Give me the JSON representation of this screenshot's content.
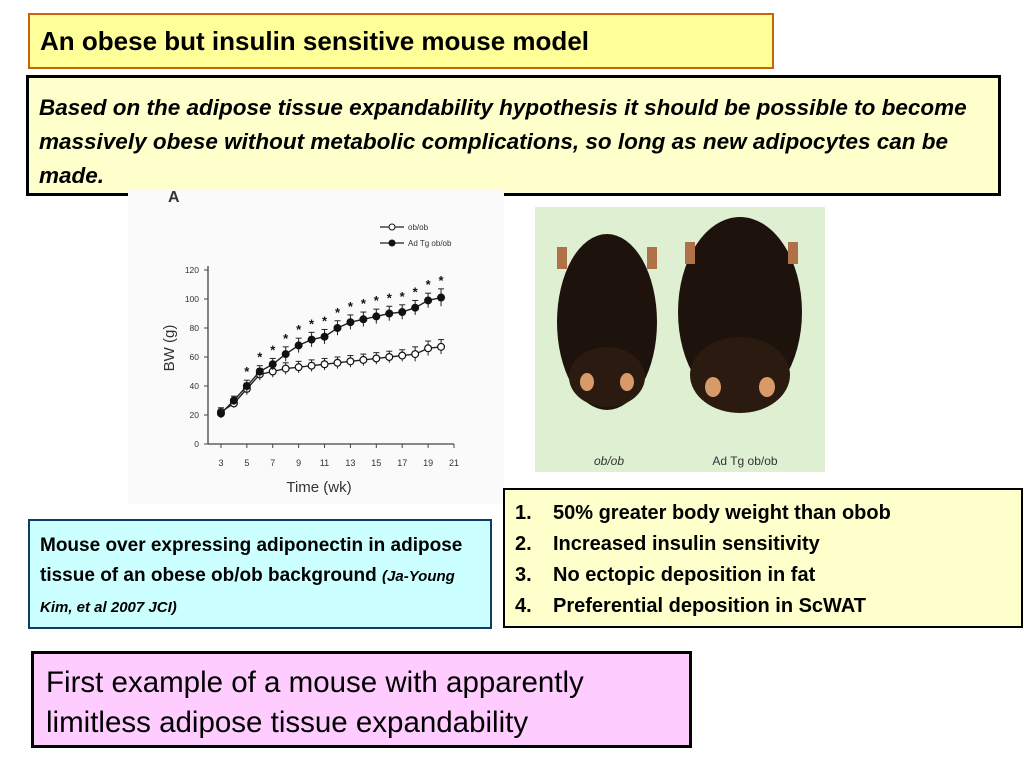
{
  "title": "An obese but insulin sensitive mouse model",
  "hypothesis": "Based on the adipose tissue expandability hypothesis it should be possible to become massively obese without metabolic complications, so long as new adipocytes can be made.",
  "chart_data": {
    "type": "line",
    "panel_letter": "A",
    "xlabel": "Time (wk)",
    "ylabel": "BW (g)",
    "xlim": [
      2,
      21
    ],
    "ylim": [
      0,
      120
    ],
    "x_ticks": [
      "3",
      "5",
      "7",
      "9",
      "11",
      "13",
      "15",
      "17",
      "19",
      "21"
    ],
    "y_ticks": [
      "0",
      "20",
      "40",
      "60",
      "80",
      "100",
      "120"
    ],
    "legend_position": "top-right",
    "grid": false,
    "x": [
      3,
      4,
      5,
      6,
      7,
      8,
      9,
      10,
      11,
      12,
      13,
      14,
      15,
      16,
      17,
      18,
      19,
      20
    ],
    "series": [
      {
        "name": "ob/ob",
        "marker": "open",
        "values": [
          22,
          28,
          38,
          48,
          50,
          52,
          53,
          54,
          55,
          56,
          57,
          58,
          59,
          60,
          61,
          62,
          66,
          67
        ],
        "errors": [
          3,
          3,
          4,
          4,
          4,
          4,
          4,
          4,
          4,
          4,
          4,
          4,
          4,
          4,
          4,
          5,
          5,
          5
        ]
      },
      {
        "name": "Ad Tg ob/ob",
        "marker": "filled",
        "values": [
          21,
          30,
          40,
          50,
          55,
          62,
          68,
          72,
          74,
          80,
          84,
          86,
          88,
          90,
          91,
          94,
          99,
          101
        ],
        "errors": [
          3,
          3,
          4,
          4,
          4,
          5,
          5,
          5,
          5,
          5,
          5,
          5,
          5,
          5,
          5,
          5,
          5,
          6
        ]
      }
    ],
    "significance_marker": "*",
    "significant_from_x": 5
  },
  "photo": {
    "labels": [
      "ob/ob",
      "Ad Tg ob/ob"
    ]
  },
  "findings": {
    "items": [
      {
        "num": "1.",
        "text": "50% greater body weight than obob"
      },
      {
        "num": "2.",
        "text": "Increased insulin sensitivity"
      },
      {
        "num": "3.",
        "text": "No ectopic deposition in fat"
      },
      {
        "num": "4.",
        "text": "Preferential deposition in ScWAT"
      }
    ]
  },
  "description": {
    "text": "Mouse over expressing adiponectin in adipose tissue of an obese ob/ob background ",
    "citation": "(Ja-Young Kim, et al 2007 JCI)"
  },
  "conclusion": "First example of a mouse with apparently limitless adipose tissue expandability",
  "colors": {
    "title_bg": "#ffff99",
    "title_border": "#c8640a",
    "hypothesis_bg": "#ffffcc",
    "description_bg": "#ccffff",
    "conclusion_bg": "#ffccff",
    "photo_bg": "#dff0d2"
  }
}
